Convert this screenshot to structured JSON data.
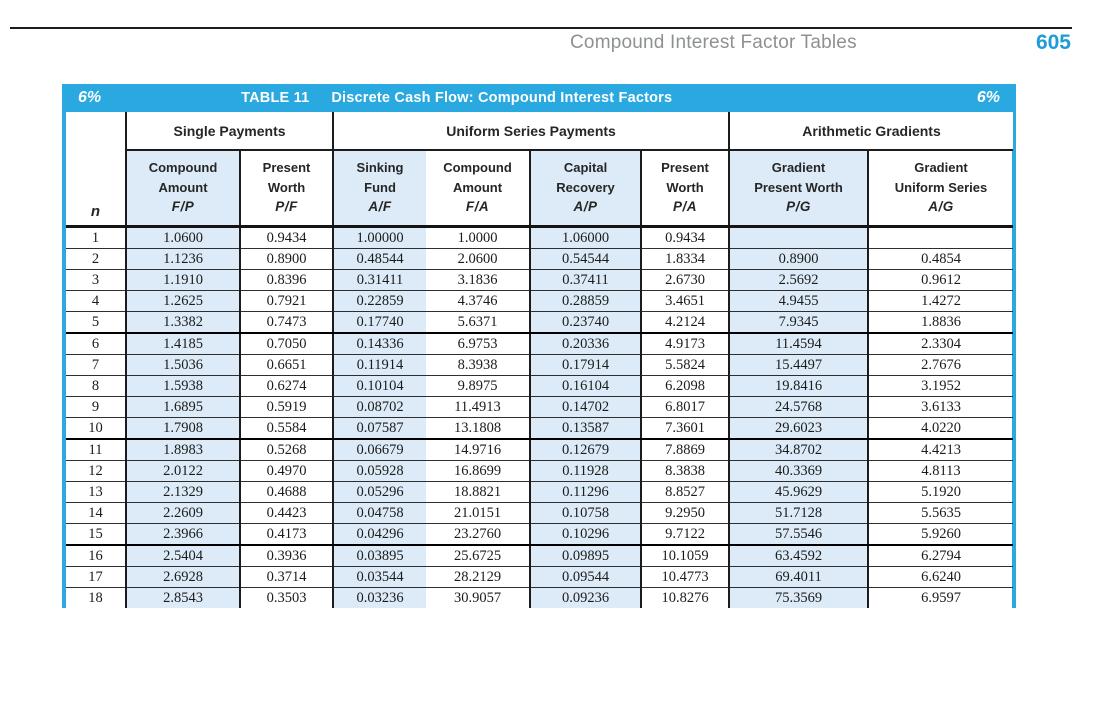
{
  "page": {
    "running_head": "Compound Interest Factor Tables",
    "page_number": "605"
  },
  "table": {
    "rate_left": "6%",
    "table_label": "TABLE 11",
    "table_title": "Discrete Cash Flow: Compound Interest Factors",
    "rate_right": "6%",
    "n_label": "n",
    "groups": [
      {
        "label": "Single Payments",
        "span": 2
      },
      {
        "label": "Uniform Series Payments",
        "span": 4
      },
      {
        "label": "Arithmetic Gradients",
        "span": 2
      }
    ],
    "columns": [
      {
        "key": "fp",
        "line1": "Compound",
        "line2": "Amount",
        "factor": "F/P"
      },
      {
        "key": "pf",
        "line1": "Present",
        "line2": "Worth",
        "factor": "P/F"
      },
      {
        "key": "af",
        "line1": "Sinking",
        "line2": "Fund",
        "factor": "A/F"
      },
      {
        "key": "fa",
        "line1": "Compound",
        "line2": "Amount",
        "factor": "F/A"
      },
      {
        "key": "ap",
        "line1": "Capital",
        "line2": "Recovery",
        "factor": "A/P"
      },
      {
        "key": "pa",
        "line1": "Present",
        "line2": "Worth",
        "factor": "P/A"
      },
      {
        "key": "pg",
        "line1": "Gradient",
        "line2": "Present Worth",
        "factor": "P/G"
      },
      {
        "key": "ag",
        "line1": "Gradient",
        "line2": "Uniform Series",
        "factor": "A/G"
      }
    ],
    "rows": [
      {
        "n": "1",
        "values": [
          "1.0600",
          "0.9434",
          "1.00000",
          "1.0000",
          "1.06000",
          "0.9434",
          "",
          ""
        ]
      },
      {
        "n": "2",
        "values": [
          "1.1236",
          "0.8900",
          "0.48544",
          "2.0600",
          "0.54544",
          "1.8334",
          "0.8900",
          "0.4854"
        ]
      },
      {
        "n": "3",
        "values": [
          "1.1910",
          "0.8396",
          "0.31411",
          "3.1836",
          "0.37411",
          "2.6730",
          "2.5692",
          "0.9612"
        ]
      },
      {
        "n": "4",
        "values": [
          "1.2625",
          "0.7921",
          "0.22859",
          "4.3746",
          "0.28859",
          "3.4651",
          "4.9455",
          "1.4272"
        ]
      },
      {
        "n": "5",
        "values": [
          "1.3382",
          "0.7473",
          "0.17740",
          "5.6371",
          "0.23740",
          "4.2124",
          "7.9345",
          "1.8836"
        ]
      },
      {
        "n": "6",
        "values": [
          "1.4185",
          "0.7050",
          "0.14336",
          "6.9753",
          "0.20336",
          "4.9173",
          "11.4594",
          "2.3304"
        ]
      },
      {
        "n": "7",
        "values": [
          "1.5036",
          "0.6651",
          "0.11914",
          "8.3938",
          "0.17914",
          "5.5824",
          "15.4497",
          "2.7676"
        ]
      },
      {
        "n": "8",
        "values": [
          "1.5938",
          "0.6274",
          "0.10104",
          "9.8975",
          "0.16104",
          "6.2098",
          "19.8416",
          "3.1952"
        ]
      },
      {
        "n": "9",
        "values": [
          "1.6895",
          "0.5919",
          "0.08702",
          "11.4913",
          "0.14702",
          "6.8017",
          "24.5768",
          "3.6133"
        ]
      },
      {
        "n": "10",
        "values": [
          "1.7908",
          "0.5584",
          "0.07587",
          "13.1808",
          "0.13587",
          "7.3601",
          "29.6023",
          "4.0220"
        ]
      },
      {
        "n": "11",
        "values": [
          "1.8983",
          "0.5268",
          "0.06679",
          "14.9716",
          "0.12679",
          "7.8869",
          "34.8702",
          "4.4213"
        ]
      },
      {
        "n": "12",
        "values": [
          "2.0122",
          "0.4970",
          "0.05928",
          "16.8699",
          "0.11928",
          "8.3838",
          "40.3369",
          "4.8113"
        ]
      },
      {
        "n": "13",
        "values": [
          "2.1329",
          "0.4688",
          "0.05296",
          "18.8821",
          "0.11296",
          "8.8527",
          "45.9629",
          "5.1920"
        ]
      },
      {
        "n": "14",
        "values": [
          "2.2609",
          "0.4423",
          "0.04758",
          "21.0151",
          "0.10758",
          "9.2950",
          "51.7128",
          "5.5635"
        ]
      },
      {
        "n": "15",
        "values": [
          "2.3966",
          "0.4173",
          "0.04296",
          "23.2760",
          "0.10296",
          "9.7122",
          "57.5546",
          "5.9260"
        ]
      },
      {
        "n": "16",
        "values": [
          "2.5404",
          "0.3936",
          "0.03895",
          "25.6725",
          "0.09895",
          "10.1059",
          "63.4592",
          "6.2794"
        ]
      },
      {
        "n": "17",
        "values": [
          "2.6928",
          "0.3714",
          "0.03544",
          "28.2129",
          "0.09544",
          "10.4773",
          "69.4011",
          "6.6240"
        ]
      },
      {
        "n": "18",
        "values": [
          "2.8543",
          "0.3503",
          "0.03236",
          "30.9057",
          "0.09236",
          "10.8276",
          "75.3569",
          "6.9597"
        ]
      }
    ],
    "highlight": {
      "n": "10",
      "column_factor": "P/F",
      "value": "0.5584"
    }
  },
  "colors": {
    "bar_blue": "#29a9e0",
    "shaded_cell_blue": "#dcebf7",
    "highlight_orange": "#e8822c",
    "page_number_blue": "#1e9cd6",
    "running_head_gray": "#8e9192",
    "rule_black": "#1c1c1c"
  }
}
